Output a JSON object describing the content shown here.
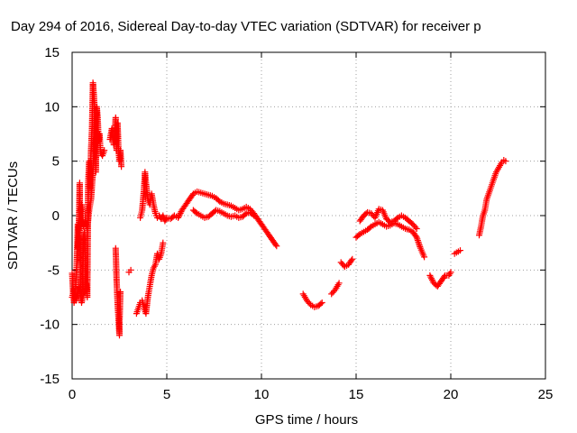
{
  "chart_data": {
    "type": "scatter",
    "title": "Day 294 of 2016, Sidereal Day-to-day VTEC variation (SDTVAR) for receiver p",
    "xlabel": "GPS time / hours",
    "ylabel": "SDTVAR / TECUs",
    "xlim": [
      0,
      25
    ],
    "ylim": [
      -15,
      15
    ],
    "xticks": [
      0,
      5,
      10,
      15,
      20,
      25
    ],
    "yticks": [
      -15,
      -10,
      -5,
      0,
      5,
      10,
      15
    ],
    "grid": true,
    "marker": "plus",
    "color": "#ff0000",
    "segments": [
      [
        [
          0.0,
          -5.3
        ],
        [
          0.05,
          -7.0
        ],
        [
          0.1,
          -8.0
        ],
        [
          0.15,
          -7.2
        ],
        [
          0.2,
          -6.5
        ],
        [
          0.25,
          -4.0
        ],
        [
          0.3,
          -0.8
        ],
        [
          0.35,
          -1.5
        ],
        [
          0.4,
          3.0
        ],
        [
          0.45,
          -7.5
        ],
        [
          0.5,
          -7.0
        ],
        [
          0.55,
          -6.8
        ],
        [
          0.6,
          -2.0
        ],
        [
          0.65,
          -1.5
        ],
        [
          0.7,
          -7.0
        ],
        [
          0.75,
          -6.2
        ],
        [
          0.8,
          -7.5
        ],
        [
          0.85,
          3.0
        ],
        [
          0.9,
          5.0
        ],
        [
          0.95,
          2.5
        ],
        [
          1.0,
          6.0
        ],
        [
          1.05,
          8.0
        ],
        [
          1.1,
          12.2
        ],
        [
          1.15,
          11.0
        ],
        [
          1.2,
          9.5
        ],
        [
          1.25,
          4.0
        ],
        [
          1.3,
          10.0
        ],
        [
          1.35,
          9.0
        ],
        [
          1.4,
          6.8
        ],
        [
          1.45,
          7.5
        ],
        [
          1.5,
          5.8
        ],
        [
          1.6,
          5.5
        ],
        [
          1.7,
          6.0
        ]
      ],
      [
        [
          0.0,
          -7.5
        ],
        [
          0.1,
          -6.8
        ],
        [
          0.2,
          -7.8
        ],
        [
          0.3,
          -7.0
        ],
        [
          0.4,
          -6.6
        ],
        [
          0.5,
          -8.0
        ],
        [
          0.6,
          -7.2
        ],
        [
          0.7,
          -6.8
        ]
      ],
      [
        [
          0.3,
          -3.0
        ],
        [
          0.4,
          0.0
        ],
        [
          0.5,
          1.0
        ],
        [
          0.6,
          -1.0
        ],
        [
          0.7,
          -0.5
        ],
        [
          0.8,
          -1.2
        ],
        [
          0.9,
          0.5
        ],
        [
          1.0,
          1.5
        ],
        [
          1.1,
          4.0
        ],
        [
          1.2,
          6.5
        ],
        [
          1.3,
          7.5
        ]
      ],
      [
        [
          2.0,
          7.0
        ],
        [
          2.1,
          8.0
        ],
        [
          2.2,
          6.5
        ],
        [
          2.25,
          7.5
        ],
        [
          2.3,
          9.0
        ],
        [
          2.35,
          6.0
        ],
        [
          2.4,
          8.5
        ],
        [
          2.45,
          6.0
        ],
        [
          2.5,
          5.0
        ],
        [
          2.55,
          6.0
        ],
        [
          2.6,
          4.5
        ]
      ],
      [
        [
          2.3,
          -3.0
        ],
        [
          2.35,
          -6.0
        ],
        [
          2.4,
          -8.0
        ],
        [
          2.45,
          -9.5
        ],
        [
          2.5,
          -11.0
        ],
        [
          2.5,
          -10.0
        ],
        [
          2.55,
          -7.0
        ]
      ],
      [
        [
          3.0,
          -5.2
        ],
        [
          3.1,
          -5.0
        ]
      ],
      [
        [
          3.4,
          -9.0
        ],
        [
          3.5,
          -8.5
        ],
        [
          3.6,
          -8.0
        ],
        [
          3.7,
          -7.8
        ],
        [
          3.8,
          -8.5
        ],
        [
          3.9,
          -9.0
        ],
        [
          4.0,
          -7.5
        ],
        [
          4.1,
          -6.5
        ],
        [
          4.2,
          -5.5
        ],
        [
          4.3,
          -4.8
        ],
        [
          4.4,
          -4.5
        ],
        [
          4.5,
          -3.5
        ],
        [
          4.6,
          -4.0
        ],
        [
          4.7,
          -3.5
        ],
        [
          4.8,
          -2.5
        ]
      ],
      [
        [
          3.6,
          -0.2
        ],
        [
          3.7,
          0.5
        ],
        [
          3.8,
          2.5
        ],
        [
          3.85,
          4.0
        ],
        [
          3.9,
          3.0
        ],
        [
          4.0,
          1.5
        ],
        [
          4.1,
          1.0
        ],
        [
          4.2,
          2.0
        ],
        [
          4.3,
          1.0
        ],
        [
          4.4,
          0.2
        ],
        [
          4.5,
          -0.2
        ],
        [
          4.6,
          0.0
        ],
        [
          4.7,
          -0.3
        ],
        [
          4.8,
          0.0
        ],
        [
          4.9,
          -0.5
        ],
        [
          5.0,
          -0.2
        ],
        [
          5.2,
          -0.3
        ],
        [
          5.4,
          0.0
        ],
        [
          5.6,
          -0.2
        ],
        [
          5.8,
          0.5
        ],
        [
          6.0,
          1.0
        ],
        [
          6.2,
          1.5
        ],
        [
          6.4,
          2.0
        ],
        [
          6.6,
          2.2
        ],
        [
          6.8,
          2.1
        ],
        [
          7.0,
          2.0
        ],
        [
          7.2,
          1.9
        ],
        [
          7.4,
          1.8
        ],
        [
          7.6,
          1.6
        ],
        [
          7.8,
          1.3
        ],
        [
          8.0,
          1.1
        ],
        [
          8.2,
          1.0
        ],
        [
          8.4,
          0.9
        ],
        [
          8.6,
          0.7
        ],
        [
          8.8,
          0.5
        ],
        [
          9.0,
          0.6
        ],
        [
          9.2,
          0.8
        ],
        [
          9.4,
          0.6
        ],
        [
          9.6,
          0.2
        ],
        [
          9.8,
          -0.3
        ],
        [
          10.0,
          -0.8
        ],
        [
          10.2,
          -1.3
        ],
        [
          10.4,
          -1.8
        ],
        [
          10.6,
          -2.3
        ],
        [
          10.8,
          -2.8
        ]
      ],
      [
        [
          6.4,
          0.5
        ],
        [
          6.6,
          0.2
        ],
        [
          6.8,
          0.0
        ],
        [
          7.0,
          -0.2
        ],
        [
          7.2,
          -0.1
        ],
        [
          7.4,
          0.2
        ],
        [
          7.6,
          0.5
        ],
        [
          7.8,
          0.4
        ],
        [
          8.0,
          0.2
        ],
        [
          8.2,
          0.0
        ],
        [
          8.4,
          -0.1
        ],
        [
          8.6,
          0.0
        ],
        [
          8.8,
          -0.2
        ],
        [
          9.0,
          -0.1
        ],
        [
          9.2,
          0.2
        ],
        [
          9.4,
          0.3
        ],
        [
          9.6,
          0.0
        ]
      ],
      [
        [
          12.2,
          -7.2
        ],
        [
          12.4,
          -7.8
        ],
        [
          12.6,
          -8.2
        ],
        [
          12.8,
          -8.4
        ],
        [
          13.0,
          -8.3
        ],
        [
          13.2,
          -8.0
        ]
      ],
      [
        [
          13.7,
          -7.2
        ],
        [
          13.9,
          -6.8
        ],
        [
          14.1,
          -6.2
        ]
      ],
      [
        [
          14.2,
          -4.3
        ],
        [
          14.4,
          -4.7
        ],
        [
          14.6,
          -4.5
        ],
        [
          14.8,
          -4.0
        ]
      ],
      [
        [
          15.0,
          -2.0
        ],
        [
          15.2,
          -1.7
        ],
        [
          15.4,
          -1.5
        ],
        [
          15.6,
          -1.3
        ],
        [
          15.8,
          -1.0
        ],
        [
          16.0,
          -0.8
        ],
        [
          16.2,
          -0.6
        ],
        [
          16.4,
          -0.8
        ],
        [
          16.6,
          -1.0
        ],
        [
          16.8,
          -0.9
        ],
        [
          17.0,
          -0.7
        ],
        [
          17.2,
          -0.8
        ],
        [
          17.4,
          -1.0
        ],
        [
          17.6,
          -1.2
        ],
        [
          17.8,
          -1.3
        ],
        [
          18.0,
          -1.5
        ],
        [
          18.2,
          -2.0
        ],
        [
          18.4,
          -3.0
        ],
        [
          18.6,
          -3.8
        ]
      ],
      [
        [
          15.2,
          -0.5
        ],
        [
          15.4,
          0.0
        ],
        [
          15.6,
          0.3
        ],
        [
          15.8,
          0.2
        ],
        [
          16.0,
          -0.2
        ],
        [
          16.2,
          0.6
        ],
        [
          16.4,
          0.5
        ],
        [
          16.6,
          -0.3
        ],
        [
          16.8,
          -0.6
        ],
        [
          17.0,
          -0.5
        ],
        [
          17.2,
          -0.2
        ],
        [
          17.4,
          0.0
        ],
        [
          17.6,
          -0.2
        ],
        [
          17.8,
          -0.5
        ],
        [
          18.0,
          -0.8
        ],
        [
          18.2,
          -1.2
        ]
      ],
      [
        [
          18.9,
          -5.5
        ],
        [
          19.1,
          -6.2
        ],
        [
          19.3,
          -6.5
        ],
        [
          19.5,
          -6.0
        ],
        [
          19.7,
          -5.5
        ],
        [
          19.9,
          -5.5
        ],
        [
          20.0,
          -5.2
        ]
      ],
      [
        [
          20.2,
          -3.5
        ],
        [
          20.4,
          -3.3
        ],
        [
          20.5,
          -3.2
        ]
      ],
      [
        [
          21.5,
          -1.8
        ],
        [
          21.6,
          -1.0
        ],
        [
          21.7,
          0.0
        ],
        [
          21.8,
          0.5
        ],
        [
          21.9,
          1.5
        ],
        [
          22.0,
          2.0
        ],
        [
          22.1,
          2.5
        ],
        [
          22.2,
          3.0
        ],
        [
          22.3,
          3.5
        ],
        [
          22.4,
          4.0
        ],
        [
          22.5,
          4.3
        ],
        [
          22.6,
          4.6
        ],
        [
          22.7,
          4.9
        ],
        [
          22.8,
          5.1
        ],
        [
          22.9,
          5.0
        ]
      ]
    ]
  }
}
